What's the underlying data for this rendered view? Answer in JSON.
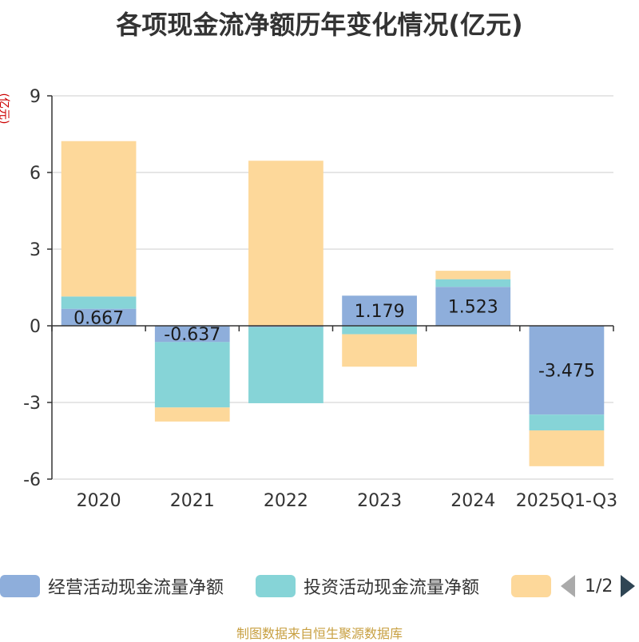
{
  "title": "各项现金流净额历年变化情况(亿元)",
  "footer": "制图数据来自恒生聚源数据库",
  "legend": {
    "items": [
      "经营活动现金流量净额",
      "投资活动现金流量净额",
      ""
    ],
    "page": "1/2"
  },
  "colors": {
    "operating": "#8eaedb",
    "investing": "#86d4d7",
    "financing": "#fdd89a",
    "grid": "#cccccc",
    "axis": "#333333",
    "text": "#333333",
    "unit": "#cc0000"
  },
  "chart_data": {
    "type": "bar",
    "stacked": true,
    "title": "各项现金流净额历年变化情况(亿元)",
    "ylabel": "(亿元)",
    "categories": [
      "2020",
      "2021",
      "2022",
      "2023",
      "2024",
      "2025Q1-Q3"
    ],
    "ylim": [
      -6,
      9
    ],
    "yticks": [
      9,
      6,
      3,
      0,
      -3,
      -6
    ],
    "series": [
      {
        "name": "经营活动现金流量净额",
        "values": [
          0.667,
          -0.637,
          -0.05,
          1.179,
          1.523,
          -3.475
        ]
      },
      {
        "name": "投资活动现金流量净额",
        "values": [
          0.48,
          -2.56,
          -2.98,
          -0.33,
          0.3,
          -0.62
        ]
      },
      {
        "name": "",
        "values": [
          6.08,
          -0.55,
          6.46,
          -1.27,
          0.33,
          -1.4
        ]
      }
    ],
    "data_labels": [
      "0.667",
      "-0.637",
      "",
      "1.179",
      "1.523",
      "-3.475"
    ]
  }
}
